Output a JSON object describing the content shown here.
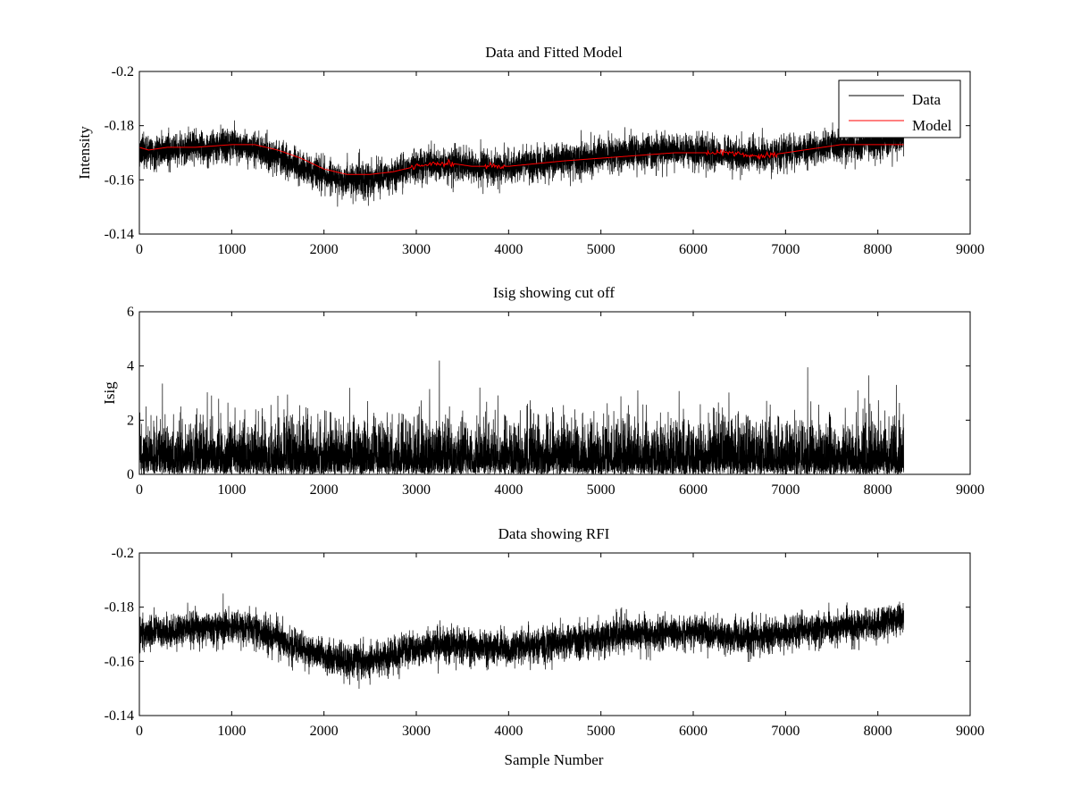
{
  "chart_data": [
    {
      "type": "line",
      "title": "Data and Fitted Model",
      "xlabel": "",
      "ylabel": "Intensity",
      "xlim": [
        0,
        9000
      ],
      "ylim": [
        -0.2,
        -0.14
      ],
      "y_reversed": true,
      "xticks": [
        0,
        1000,
        2000,
        3000,
        4000,
        5000,
        6000,
        7000,
        8000,
        9000
      ],
      "yticks": [
        -0.14,
        -0.16,
        -0.18,
        -0.2
      ],
      "ytick_labels": [
        "-0.14",
        "-0.16",
        "-0.18",
        "-0.2"
      ],
      "grid": false,
      "legend": {
        "placement": "top-right",
        "entries": [
          "Data",
          "Model"
        ]
      },
      "colors": {
        "Data": "#000000",
        "Model": "#ff0000"
      },
      "series": [
        {
          "name": "Data",
          "kind": "noisy",
          "x": [
            0,
            200,
            400,
            600,
            800,
            1000,
            1200,
            1400,
            1600,
            1800,
            2000,
            2200,
            2400,
            2600,
            2800,
            3000,
            3200,
            3400,
            3600,
            3800,
            4000,
            4200,
            4400,
            4600,
            4800,
            5000,
            5200,
            5400,
            5600,
            5800,
            6000,
            6200,
            6400,
            6600,
            6800,
            7000,
            7200,
            7400,
            7600,
            7800,
            8000,
            8200,
            8280
          ],
          "mean": [
            -0.17,
            -0.171,
            -0.171,
            -0.172,
            -0.172,
            -0.173,
            -0.172,
            -0.17,
            -0.167,
            -0.164,
            -0.162,
            -0.16,
            -0.16,
            -0.161,
            -0.163,
            -0.165,
            -0.166,
            -0.166,
            -0.165,
            -0.165,
            -0.165,
            -0.166,
            -0.166,
            -0.167,
            -0.168,
            -0.169,
            -0.17,
            -0.17,
            -0.17,
            -0.171,
            -0.171,
            -0.17,
            -0.169,
            -0.169,
            -0.169,
            -0.17,
            -0.171,
            -0.172,
            -0.173,
            -0.173,
            -0.174,
            -0.175,
            -0.176
          ],
          "spread": 0.0055,
          "n_points": 8280
        },
        {
          "name": "Model",
          "kind": "line",
          "x": [
            0,
            100,
            300,
            600,
            1000,
            1250,
            1500,
            1750,
            2000,
            2250,
            2500,
            2750,
            3000,
            3200,
            3400,
            3600,
            3800,
            4000,
            4300,
            4600,
            5000,
            5400,
            5800,
            6200,
            6400,
            6600,
            6800,
            7000,
            7200,
            7400,
            7600,
            7800,
            8000,
            8280
          ],
          "y": [
            -0.172,
            -0.171,
            -0.172,
            -0.172,
            -0.173,
            -0.173,
            -0.171,
            -0.168,
            -0.164,
            -0.162,
            -0.162,
            -0.163,
            -0.165,
            -0.166,
            -0.166,
            -0.165,
            -0.165,
            -0.165,
            -0.166,
            -0.167,
            -0.168,
            -0.169,
            -0.17,
            -0.17,
            -0.17,
            -0.169,
            -0.169,
            -0.17,
            -0.171,
            -0.172,
            -0.173,
            -0.173,
            -0.173,
            -0.173
          ],
          "wiggle_ranges": [
            [
              2950,
              3400
            ],
            [
              3750,
              3950
            ],
            [
              6150,
              6900
            ]
          ]
        }
      ]
    },
    {
      "type": "line",
      "title": "Isig showing cut off",
      "xlabel": "",
      "ylabel": "Isig",
      "xlim": [
        0,
        9000
      ],
      "ylim": [
        0,
        6
      ],
      "y_reversed": false,
      "xticks": [
        0,
        1000,
        2000,
        3000,
        4000,
        5000,
        6000,
        7000,
        8000,
        9000
      ],
      "yticks": [
        0,
        2,
        4,
        6
      ],
      "ytick_labels": [
        "0",
        "2",
        "4",
        "6"
      ],
      "grid": false,
      "colors": {
        "Isig": "#000000"
      },
      "series": [
        {
          "name": "",
          "kind": "abs-noise",
          "x_range": [
            0,
            8280
          ],
          "typical_max": 2.3,
          "n_points": 8280,
          "peaks": [
            [
              3250,
              4.2
            ],
            [
              7240,
              3.95
            ],
            [
              7900,
              3.65
            ],
            [
              250,
              3.35
            ],
            [
              8200,
              3.3
            ],
            [
              1500,
              2.9
            ],
            [
              5400,
              3.1
            ]
          ]
        }
      ]
    },
    {
      "type": "line",
      "title": "Data showing RFI",
      "xlabel": "Sample Number",
      "ylabel": "",
      "xlim": [
        0,
        9000
      ],
      "ylim": [
        -0.2,
        -0.14
      ],
      "y_reversed": true,
      "xticks": [
        0,
        1000,
        2000,
        3000,
        4000,
        5000,
        6000,
        7000,
        8000,
        9000
      ],
      "yticks": [
        -0.14,
        -0.16,
        -0.18,
        -0.2
      ],
      "ytick_labels": [
        "-0.14",
        "-0.16",
        "-0.18",
        "-0.2"
      ],
      "grid": false,
      "colors": {
        "Data": "#000000"
      },
      "series": [
        {
          "name": "",
          "kind": "noisy",
          "x": [
            0,
            200,
            400,
            600,
            800,
            1000,
            1200,
            1400,
            1600,
            1800,
            2000,
            2200,
            2400,
            2600,
            2800,
            3000,
            3200,
            3400,
            3600,
            3800,
            4000,
            4200,
            4400,
            4600,
            4800,
            5000,
            5200,
            5400,
            5600,
            5800,
            6000,
            6200,
            6400,
            6600,
            6800,
            7000,
            7200,
            7400,
            7600,
            7800,
            8000,
            8200,
            8280
          ],
          "mean": [
            -0.17,
            -0.171,
            -0.171,
            -0.172,
            -0.172,
            -0.173,
            -0.172,
            -0.17,
            -0.167,
            -0.164,
            -0.162,
            -0.16,
            -0.16,
            -0.161,
            -0.163,
            -0.165,
            -0.166,
            -0.166,
            -0.165,
            -0.165,
            -0.165,
            -0.166,
            -0.166,
            -0.167,
            -0.168,
            -0.169,
            -0.17,
            -0.17,
            -0.17,
            -0.171,
            -0.171,
            -0.17,
            -0.169,
            -0.169,
            -0.169,
            -0.17,
            -0.171,
            -0.172,
            -0.173,
            -0.173,
            -0.174,
            -0.175,
            -0.176
          ],
          "spread": 0.0055,
          "n_points": 8280
        }
      ]
    }
  ]
}
